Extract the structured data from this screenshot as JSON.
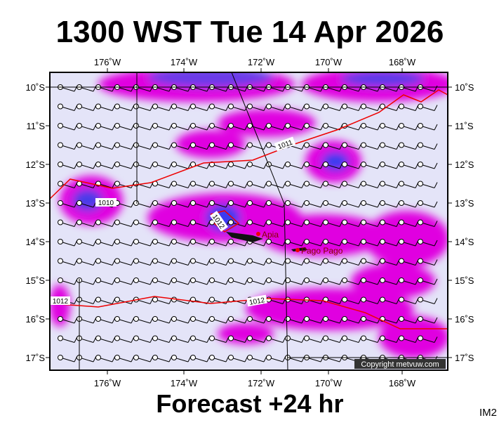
{
  "header": {
    "title": "1300 WST Tue 14 Apr 2026"
  },
  "map": {
    "lon_labels": [
      "176˚W",
      "174˚W",
      "172˚W",
      "170˚W",
      "168˚W"
    ],
    "lat_labels": [
      "10˚S",
      "11˚S",
      "12˚S",
      "13˚S",
      "14˚S",
      "15˚S",
      "16˚S",
      "17˚S"
    ],
    "isobar_labels": [
      "1011",
      "1010",
      "1012",
      "1012",
      "1012"
    ],
    "places": [
      "Apia",
      "Pago Pago"
    ],
    "copyright": "Copyright metvuw.com"
  },
  "footer": {
    "forecast": "Forecast +24 hr",
    "code": "IM2"
  }
}
